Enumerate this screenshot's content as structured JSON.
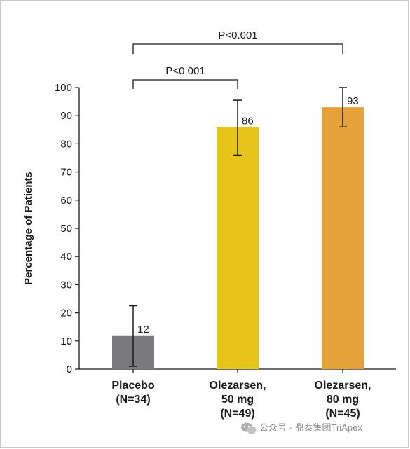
{
  "chart_data": {
    "type": "bar",
    "categories": [
      [
        "Placebo",
        "(N=34)"
      ],
      [
        "Olezarsen,",
        "50 mg",
        "(N=49)"
      ],
      [
        "Olezarsen,",
        "80 mg",
        "(N=45)"
      ]
    ],
    "values": [
      12,
      86,
      93
    ],
    "error_bars": [
      {
        "low": 1,
        "high": 22.5
      },
      {
        "low": 76,
        "high": 95.5
      },
      {
        "low": 86,
        "high": 100
      }
    ],
    "data_labels": [
      "12",
      "86",
      "93"
    ],
    "colors": [
      "#7a7a7c",
      "#e7c41c",
      "#e5a23a"
    ],
    "ylabel": "Percentage of Patients",
    "ylim": [
      0,
      100
    ],
    "yticks": [
      0,
      10,
      20,
      30,
      40,
      50,
      60,
      70,
      80,
      90,
      100
    ],
    "grid": false,
    "comparisons": [
      {
        "from": 0,
        "to": 1,
        "label": "P<0.001"
      },
      {
        "from": 0,
        "to": 2,
        "label": "P<0.001"
      }
    ]
  },
  "watermark": {
    "icon": "wechat-icon",
    "text": "公众号 · 鼎泰集团TriApex"
  }
}
